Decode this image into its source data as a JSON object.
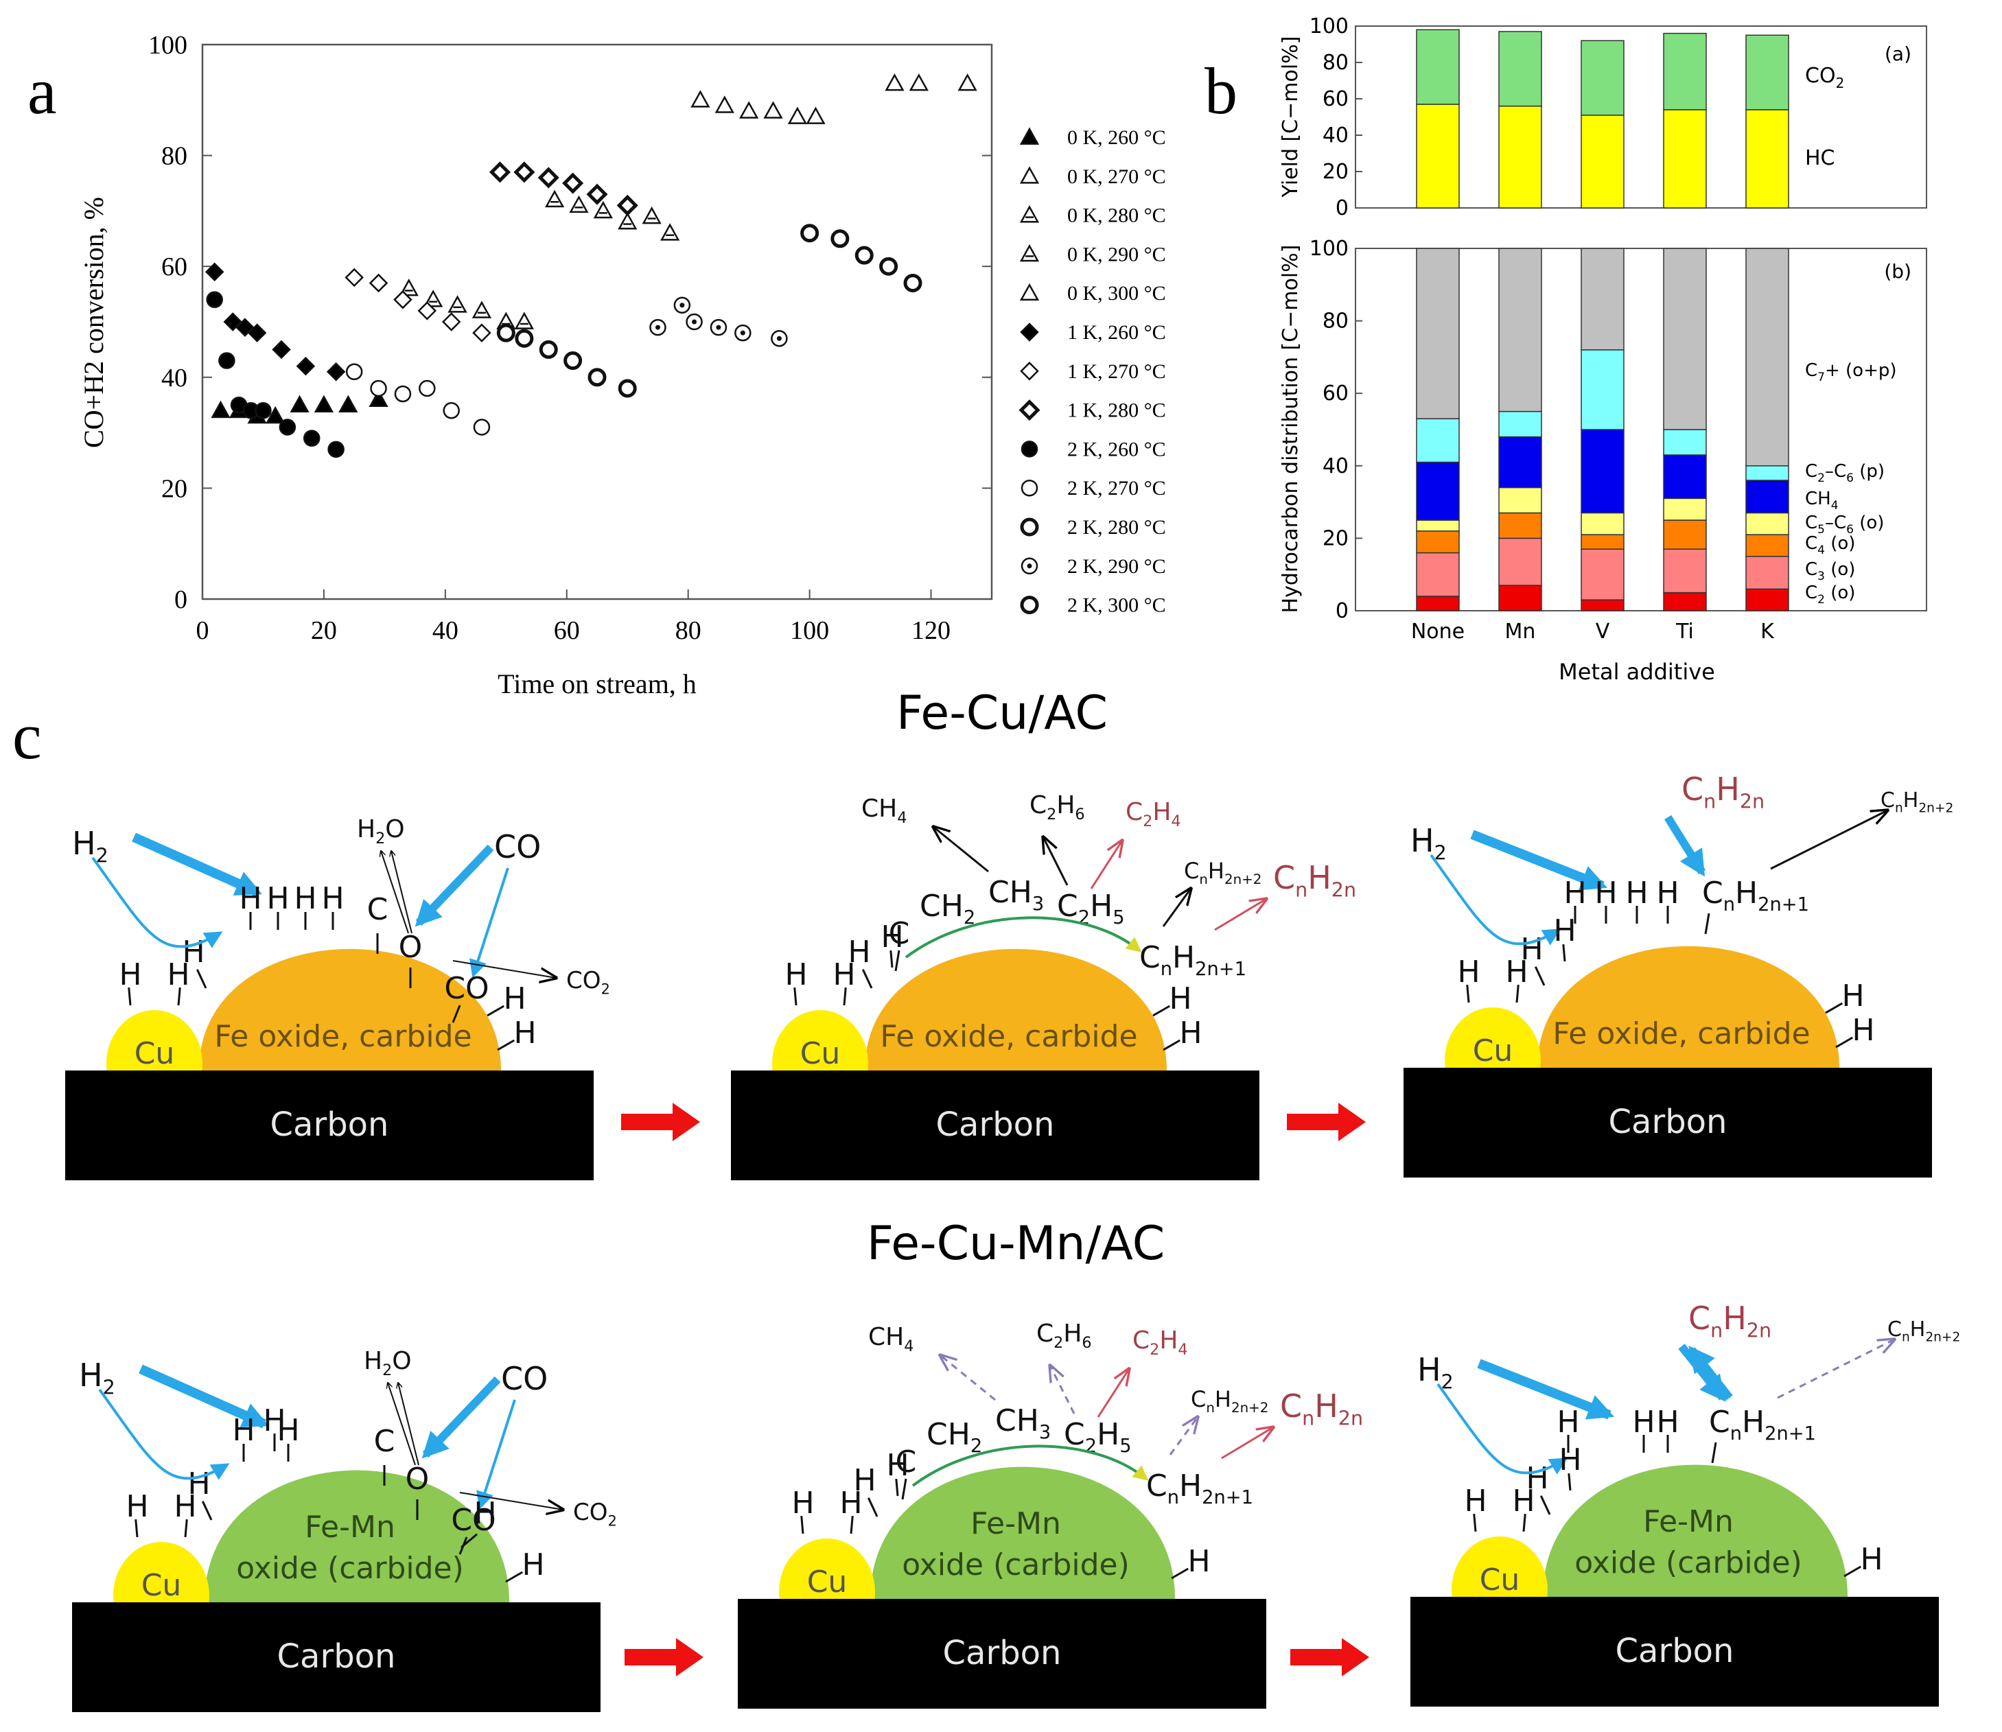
{
  "panel_labels": {
    "a": "a",
    "b": "b",
    "c": "c"
  },
  "chart_data": [
    {
      "id": "panel-a",
      "type": "scatter",
      "xlabel": "Time on stream, h",
      "ylabel": "CO+H2 conversion, %",
      "xlim": [
        0,
        130
      ],
      "ylim": [
        0,
        100
      ],
      "xticks": [
        0,
        20,
        40,
        60,
        80,
        100,
        120
      ],
      "yticks": [
        0,
        20,
        40,
        60,
        80,
        100
      ],
      "series": [
        {
          "name": "0 K, 260 °C",
          "marker": "tri-filled",
          "points": [
            [
              3,
              34
            ],
            [
              6,
              34
            ],
            [
              9,
              33
            ],
            [
              12,
              33
            ],
            [
              16,
              35
            ],
            [
              20,
              35
            ],
            [
              24,
              35
            ],
            [
              29,
              36
            ]
          ]
        },
        {
          "name": "0 K, 270 °C",
          "marker": "tri-open",
          "points": [
            [
              114,
              93
            ],
            [
              118,
              93
            ],
            [
              126,
              93
            ]
          ]
        },
        {
          "name": "0 K, 280 °C",
          "marker": "tri-hatch",
          "points": [
            [
              34,
              56
            ],
            [
              38,
              54
            ],
            [
              42,
              53
            ],
            [
              46,
              52
            ],
            [
              50,
              50
            ],
            [
              53,
              50
            ]
          ]
        },
        {
          "name": "0 K, 290 °C",
          "marker": "tri-hatch",
          "points": [
            [
              58,
              72
            ],
            [
              62,
              71
            ],
            [
              66,
              70
            ],
            [
              70,
              68
            ],
            [
              74,
              69
            ],
            [
              77,
              66
            ]
          ]
        },
        {
          "name": "0 K, 300 °C",
          "marker": "tri-open",
          "points": [
            [
              82,
              90
            ],
            [
              86,
              89
            ],
            [
              90,
              88
            ],
            [
              94,
              88
            ],
            [
              98,
              87
            ],
            [
              101,
              87
            ]
          ]
        },
        {
          "name": "1 K, 260 °C",
          "marker": "dia-filled",
          "points": [
            [
              2,
              59
            ],
            [
              5,
              50
            ],
            [
              7,
              49
            ],
            [
              9,
              48
            ],
            [
              13,
              45
            ],
            [
              17,
              42
            ],
            [
              22,
              41
            ]
          ]
        },
        {
          "name": "1 K, 270 °C",
          "marker": "dia-open",
          "points": [
            [
              25,
              58
            ],
            [
              29,
              57
            ],
            [
              33,
              54
            ],
            [
              37,
              52
            ],
            [
              41,
              50
            ],
            [
              46,
              48
            ],
            [
              50,
              48
            ]
          ]
        },
        {
          "name": "1 K, 280 °C",
          "marker": "dia-bold",
          "points": [
            [
              49,
              77
            ],
            [
              53,
              77
            ],
            [
              57,
              76
            ],
            [
              61,
              75
            ],
            [
              65,
              73
            ],
            [
              70,
              71
            ]
          ]
        },
        {
          "name": "2 K, 260 °C",
          "marker": "circ-filled",
          "points": [
            [
              2,
              54
            ],
            [
              4,
              43
            ],
            [
              6,
              35
            ],
            [
              8,
              34
            ],
            [
              10,
              34
            ],
            [
              14,
              31
            ],
            [
              18,
              29
            ],
            [
              22,
              27
            ]
          ]
        },
        {
          "name": "2 K, 270 °C",
          "marker": "circ-open",
          "points": [
            [
              25,
              41
            ],
            [
              29,
              38
            ],
            [
              33,
              37
            ],
            [
              37,
              38
            ],
            [
              41,
              34
            ],
            [
              46,
              31
            ]
          ]
        },
        {
          "name": "2 K, 280 °C",
          "marker": "circ-bold",
          "points": [
            [
              50,
              48
            ],
            [
              53,
              47
            ],
            [
              57,
              45
            ],
            [
              61,
              43
            ],
            [
              65,
              40
            ],
            [
              70,
              38
            ]
          ]
        },
        {
          "name": "2 K, 290 °C",
          "marker": "circ-dot",
          "points": [
            [
              75,
              49
            ],
            [
              79,
              53
            ],
            [
              81,
              50
            ],
            [
              85,
              49
            ],
            [
              89,
              48
            ],
            [
              95,
              47
            ]
          ]
        },
        {
          "name": "2 K, 300 °C",
          "marker": "circ-bold",
          "points": [
            [
              100,
              66
            ],
            [
              105,
              65
            ],
            [
              109,
              62
            ],
            [
              113,
              60
            ],
            [
              117,
              57
            ]
          ]
        }
      ]
    },
    {
      "id": "panel-b-yield",
      "type": "bar",
      "stacked": true,
      "panel_tag": "(a)",
      "ylabel": "Yield  [C−mol%]",
      "ylim": [
        0,
        100
      ],
      "yticks": [
        0,
        20,
        40,
        60,
        80,
        100
      ],
      "categories": [
        "None",
        "Mn",
        "V",
        "Ti",
        "K"
      ],
      "series": [
        {
          "name": "HC",
          "color": "#ffff00",
          "values": [
            57,
            56,
            51,
            54,
            54
          ]
        },
        {
          "name": "CO2",
          "color": "#80e080",
          "values": [
            41,
            41,
            41,
            42,
            41
          ]
        }
      ],
      "labels": {
        "co2": "CO",
        "co2_sub": "2",
        "hc": "HC"
      }
    },
    {
      "id": "panel-b-distribution",
      "type": "bar",
      "stacked": true,
      "panel_tag": "(b)",
      "ylabel": "Hydrocarbon distribution  [C−mol%]",
      "xlabel": "Metal additive",
      "ylim": [
        0,
        100
      ],
      "yticks": [
        0,
        20,
        40,
        60,
        80,
        100
      ],
      "categories": [
        "None",
        "Mn",
        "V",
        "Ti",
        "K"
      ],
      "series": [
        {
          "name": "C2 (o)",
          "color": "#ee0000",
          "values": [
            4,
            7,
            3,
            5,
            6
          ]
        },
        {
          "name": "C3 (o)",
          "color": "#ff8080",
          "values": [
            12,
            13,
            14,
            12,
            9
          ]
        },
        {
          "name": "C4 (o)",
          "color": "#ff8000",
          "values": [
            6,
            7,
            4,
            8,
            6
          ]
        },
        {
          "name": "C5-C6 (o)",
          "color": "#ffff80",
          "values": [
            3,
            7,
            6,
            6,
            6
          ]
        },
        {
          "name": "CH4",
          "color": "#0000ee",
          "values": [
            16,
            14,
            23,
            12,
            9
          ]
        },
        {
          "name": "C2-C6 (p)",
          "color": "#80ffff",
          "values": [
            12,
            7,
            22,
            7,
            4
          ]
        },
        {
          "name": "C7+ (o+p)",
          "color": "#c0c0c0",
          "values": [
            47,
            45,
            28,
            50,
            60
          ]
        }
      ],
      "legend_text": [
        {
          "main": "C",
          "sub": "7",
          "rest": "+ (o+p)"
        },
        {
          "main": "C",
          "sub": "2",
          "rest": "–C",
          "sub2": "6",
          "rest2": " (p)"
        },
        {
          "main": "CH",
          "sub": "4",
          "rest": ""
        },
        {
          "main": "C",
          "sub": "5",
          "rest": "–C",
          "sub2": "6",
          "rest2": " (o)"
        },
        {
          "main": "C",
          "sub": "4",
          "rest": " (o)"
        },
        {
          "main": "C",
          "sub": "3",
          "rest": " (o)"
        },
        {
          "main": "C",
          "sub": "2",
          "rest": " (o)"
        }
      ]
    }
  ],
  "diagram": {
    "row1_title": "Fe-Cu/AC",
    "row2_title": "Fe-Cu-Mn/AC",
    "carbon_label": "Carbon",
    "cu_label": "Cu",
    "fe_label": "Fe oxide, carbide",
    "femn_line1": "Fe-Mn",
    "femn_line2": "oxide (carbide)",
    "h": "H",
    "h2": "H",
    "h2_sub": "2",
    "co": "CO",
    "c": "C",
    "o": "O",
    "h2o": "H",
    "h2o_sub": "2",
    "h2o_o": "O",
    "co2": "CO",
    "co2_sub": "2",
    "ch4": "CH",
    "ch4_sub": "4",
    "c2h6": "C",
    "c2h6_sub1": "2",
    "c2h6_h": "H",
    "c2h6_sub2": "6",
    "c2h4": "C",
    "c2h4_sub1": "2",
    "c2h4_h": "H",
    "c2h4_sub2": "4",
    "cnh2n2": "C",
    "cnh2n2_sub1": "n",
    "cnh2n2_h": "H",
    "cnh2n2_sub2": "2n+2",
    "cnh2n": "C",
    "cnh2n_sub1": "n",
    "cnh2n_h": "H",
    "cnh2n_sub2": "2n",
    "cnh2n1": "C",
    "cnh2n1_sub1": "n",
    "cnh2n1_h": "H",
    "cnh2n1_sub2": "2n+1",
    "ch2": "CH",
    "ch2_sub": "2",
    "ch3": "CH",
    "ch3_sub": "3",
    "c2h5": "C",
    "c2h5_sub1": "2",
    "c2h5_h": "H",
    "c2h5_sub2": "5",
    "colors": {
      "fe": "#f5b21b",
      "femn": "#8cc852",
      "cu": "#ffef00",
      "carbon": "#000000",
      "blue_arrow": "#2aa7e8",
      "red_arrow": "#ee1111",
      "olefin_text": "#a0404a",
      "green_arc": "#2e9c52"
    }
  }
}
